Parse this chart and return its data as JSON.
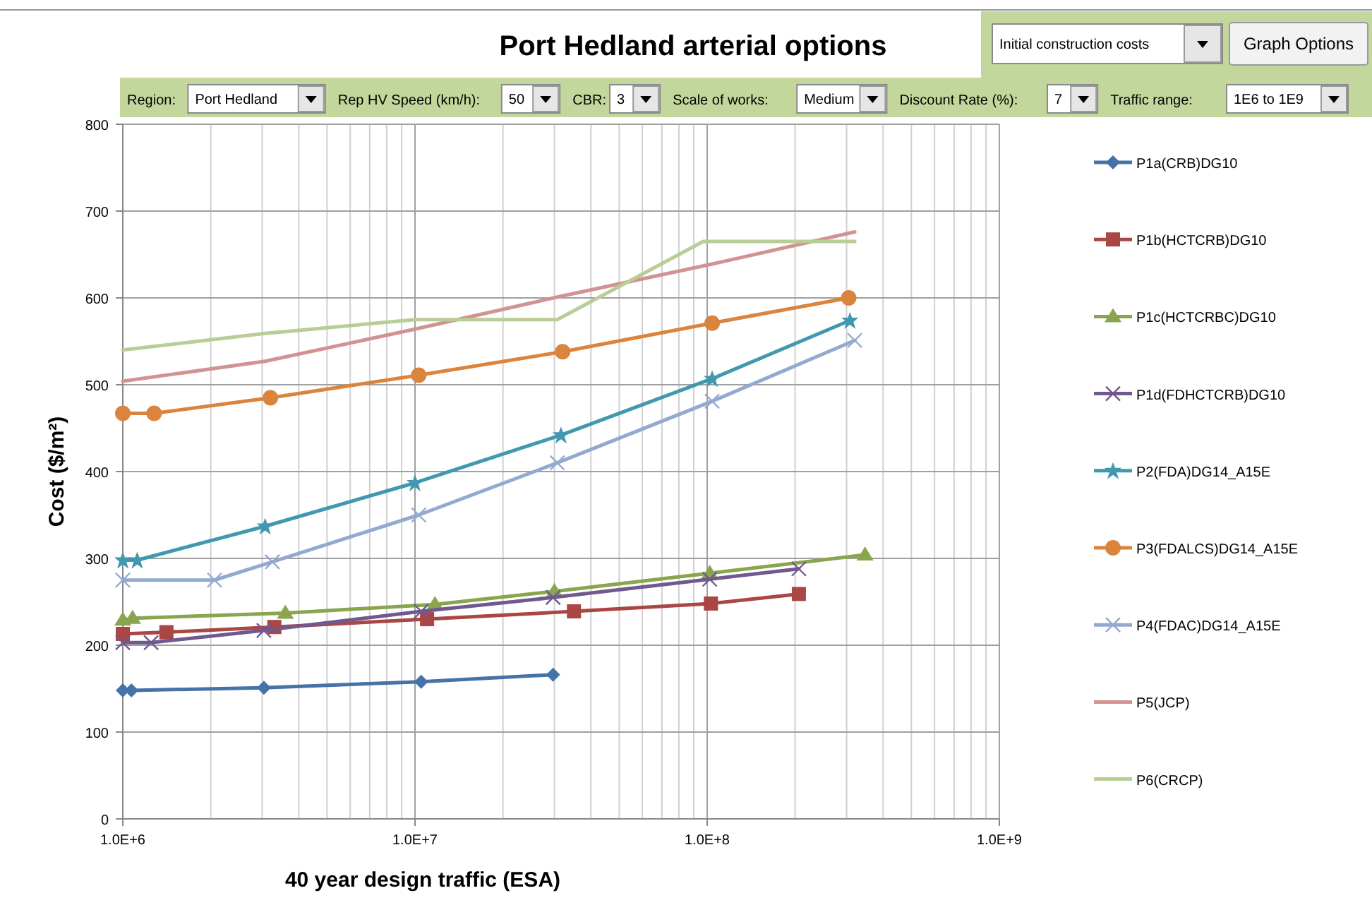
{
  "chart_data": {
    "type": "line",
    "title": "Port Hedland arterial options",
    "xlabel": "40 year design traffic (ESA)",
    "ylabel": "Cost ($/m²)",
    "annotations": [
      "Initial construction costs",
      "Graph Options",
      "Region:",
      "Port Hedland",
      "Rep HV Speed (km/h):",
      "50",
      "CBR:",
      "3",
      "Scale of works:",
      "Medium",
      "Discount Rate (%):",
      "7",
      "Traffic range:",
      "1E6 to 1E9"
    ],
    "log": "x",
    "grid": true,
    "legend": "right",
    "xlim": [
      1000000,
      1000000000
    ],
    "xticks": [
      {
        "value": 1000000,
        "label": "1.0E+6"
      },
      {
        "value": 10000000,
        "label": "1.0E+7"
      },
      {
        "value": 100000000,
        "label": "1.0E+8"
      },
      {
        "value": 1000000000,
        "label": "1.0E+9"
      }
    ],
    "ylim": [
      0,
      800
    ],
    "yticks": [
      0,
      100,
      200,
      300,
      400,
      500,
      600,
      700,
      800
    ],
    "series": [
      {
        "name": "P1a(CRB)DG10",
        "color": "#4572a7",
        "marker": "diamond",
        "x": [
          1000000,
          1070000,
          3040000,
          10500000,
          29700000
        ],
        "values": [
          148,
          148,
          151,
          158,
          166
        ]
      },
      {
        "name": "P1b(HCTCRB)DG10",
        "color": "#aa4643",
        "marker": "square",
        "x": [
          1000000,
          1410000,
          3300000,
          11000000,
          35000000,
          103000000,
          206000000
        ],
        "values": [
          213,
          215,
          221,
          230,
          239,
          248,
          259
        ]
      },
      {
        "name": "P1c(HCTCRBC)DG10",
        "color": "#89a54e",
        "marker": "triangle",
        "x": [
          1000000,
          1080000,
          3600000,
          11700000,
          30000000,
          102000000,
          347000000
        ],
        "values": [
          229,
          231,
          237,
          247,
          262,
          283,
          304
        ]
      },
      {
        "name": "P1d(FDHCTCRB)DG10",
        "color": "#71588f",
        "marker": "cross",
        "x": [
          1000000,
          1250000,
          3040000,
          10500000,
          29700000,
          102000000,
          206000000
        ],
        "values": [
          203,
          203,
          217,
          239,
          255,
          276,
          288
        ]
      },
      {
        "name": "P2(FDA)DG14_A15E",
        "color": "#4198af",
        "marker": "star",
        "x": [
          1000000,
          1120000,
          3070000,
          10000000,
          31600000,
          104000000,
          308000000
        ],
        "values": [
          298,
          298,
          337,
          387,
          442,
          507,
          574
        ]
      },
      {
        "name": "P3(FDALCS)DG14_A15E",
        "color": "#db843d",
        "marker": "circle",
        "x": [
          1000000,
          1280000,
          3200000,
          10300000,
          32000000,
          104000000,
          305000000
        ],
        "values": [
          467,
          467,
          485,
          511,
          538,
          571,
          600
        ]
      },
      {
        "name": "P4(FDAC)DG14_A15E",
        "color": "#93a9cf",
        "marker": "cross",
        "x": [
          1000000,
          2060000,
          3250000,
          10300000,
          30700000,
          104000000,
          320000000
        ],
        "values": [
          275,
          275,
          296,
          350,
          410,
          481,
          551
        ]
      },
      {
        "name": "P5(JCP)",
        "color": "#d19392",
        "marker": "none",
        "x": [
          1000000,
          3070000,
          10000000,
          30700000,
          104000000,
          320000000
        ],
        "values": [
          504,
          527,
          564,
          601,
          639,
          676
        ]
      },
      {
        "name": "P6(CRCP)",
        "color": "#b9cd96",
        "marker": "none",
        "x": [
          1000000,
          3040000,
          10000000,
          30700000,
          97000000,
          320000000
        ],
        "values": [
          540,
          559,
          575,
          575,
          665,
          665
        ]
      }
    ]
  }
}
